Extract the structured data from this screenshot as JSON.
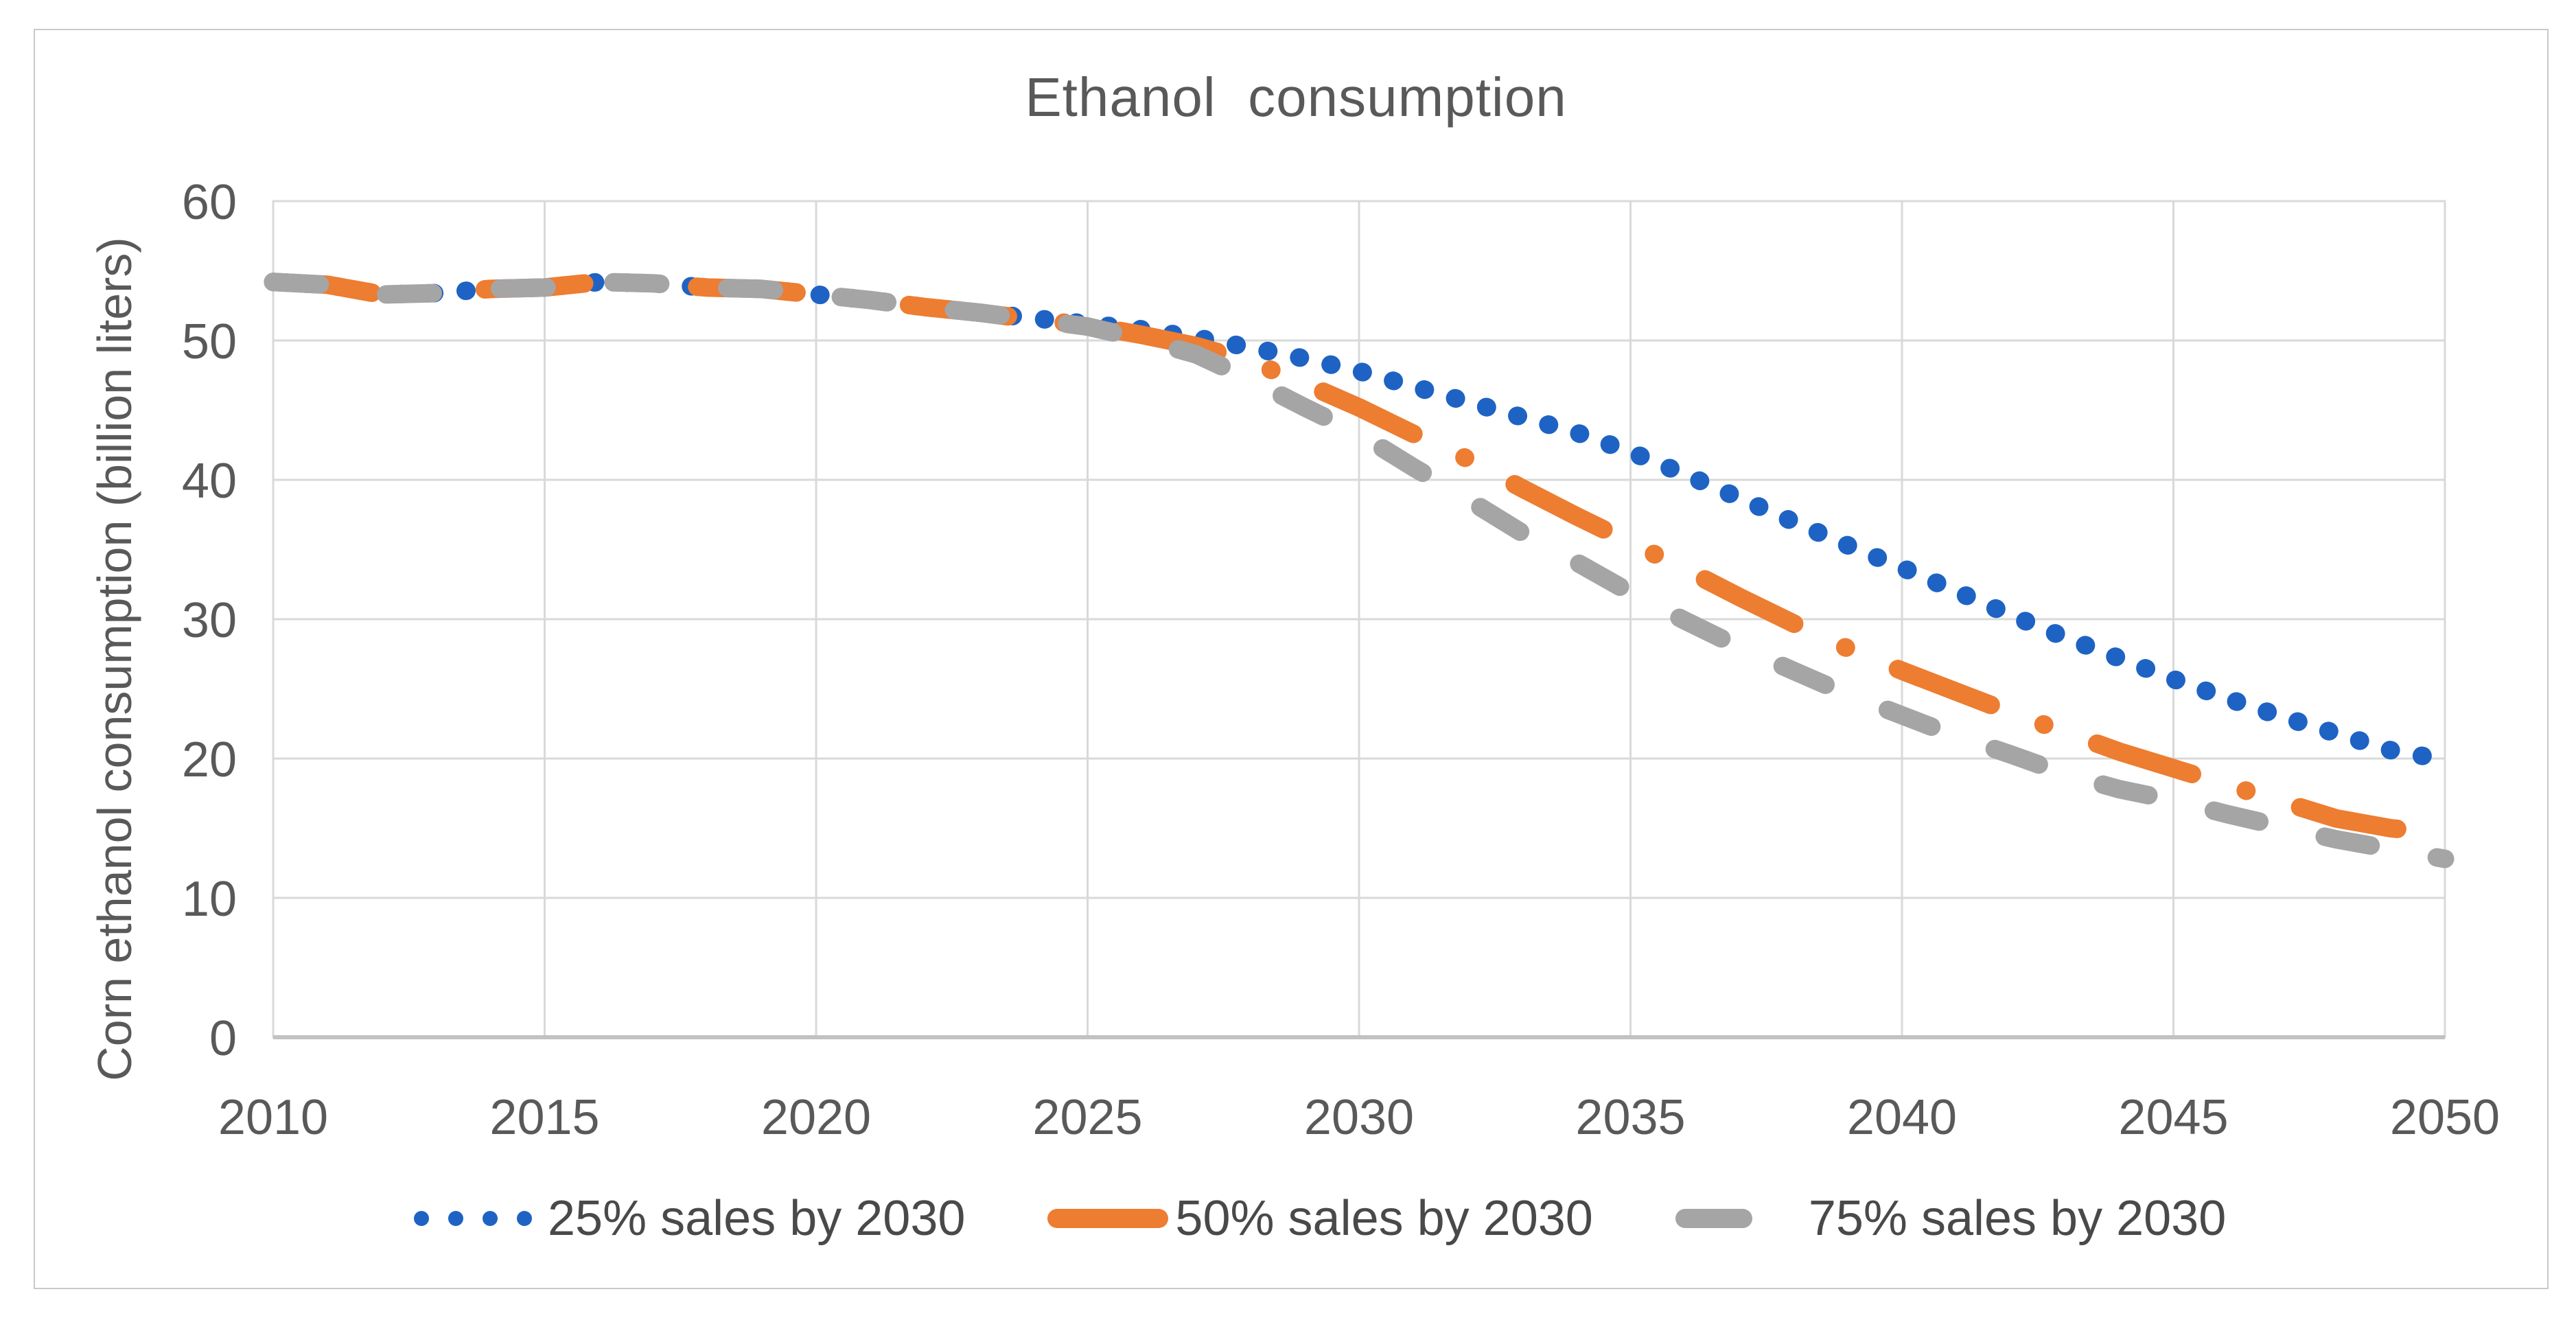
{
  "chart_data": {
    "type": "line",
    "title": "Ethanol  consumption",
    "xlabel": "",
    "ylabel": "Corn ethanol consumption (billion liters)",
    "xlim": [
      2010,
      2050
    ],
    "ylim": [
      0,
      60
    ],
    "grid": true,
    "legend_position": "bottom",
    "x_ticks": [
      "2010",
      "2015",
      "2020",
      "2025",
      "2030",
      "2035",
      "2040",
      "2045",
      "2050"
    ],
    "y_ticks": [
      "0",
      "10",
      "20",
      "30",
      "40",
      "50",
      "60"
    ],
    "x": [
      2010,
      2011,
      2012,
      2013,
      2014,
      2015,
      2016,
      2017,
      2018,
      2019,
      2020,
      2021,
      2022,
      2023,
      2024,
      2025,
      2026,
      2027,
      2028,
      2029,
      2030,
      2031,
      2032,
      2033,
      2034,
      2035,
      2036,
      2037,
      2038,
      2039,
      2040,
      2041,
      2042,
      2043,
      2044,
      2045,
      2046,
      2047,
      2048,
      2049,
      2050
    ],
    "series": [
      {
        "name": "25% sales by 2030",
        "color": "#1E63C4",
        "line_style": "dot",
        "values": [
          54.2,
          54.0,
          53.3,
          53.4,
          53.7,
          53.8,
          54.2,
          54.1,
          53.8,
          53.7,
          53.3,
          52.9,
          52.4,
          52.0,
          51.6,
          51.2,
          50.8,
          50.2,
          49.5,
          48.7,
          47.8,
          46.7,
          45.6,
          44.5,
          43.4,
          42.0,
          40.4,
          38.7,
          37.0,
          35.3,
          33.7,
          32.0,
          30.3,
          28.7,
          27.2,
          25.7,
          24.3,
          23.0,
          21.8,
          20.6,
          19.9
        ]
      },
      {
        "name": "50% sales by 2030",
        "color": "#ED7D31",
        "line_style": "long-dash-dot",
        "values": [
          54.2,
          54.0,
          53.3,
          53.4,
          53.7,
          53.8,
          54.2,
          54.1,
          53.8,
          53.7,
          53.3,
          52.9,
          52.4,
          52.0,
          51.5,
          51.1,
          50.4,
          49.6,
          48.5,
          46.9,
          45.2,
          43.3,
          41.5,
          39.4,
          37.4,
          35.5,
          33.6,
          31.6,
          29.7,
          27.9,
          26.3,
          24.8,
          23.3,
          21.9,
          20.5,
          19.3,
          18.1,
          16.9,
          15.7,
          15.0,
          14.6
        ]
      },
      {
        "name": "75% sales by 2030",
        "color": "#A5A5A5",
        "line_style": "dash",
        "values": [
          54.2,
          54.0,
          53.3,
          53.4,
          53.7,
          53.8,
          54.2,
          54.1,
          53.8,
          53.7,
          53.3,
          52.9,
          52.4,
          52.0,
          51.5,
          51.0,
          50.1,
          49.0,
          47.2,
          45.2,
          43.3,
          40.9,
          38.6,
          36.2,
          34.1,
          31.9,
          29.9,
          28.0,
          26.3,
          24.6,
          23.1,
          21.6,
          20.3,
          18.9,
          17.8,
          17.0,
          16.0,
          15.1,
          14.2,
          13.5,
          12.8
        ]
      }
    ],
    "colors": {
      "grid": "#d9d9d9",
      "plot_border": "#d9d9d9",
      "axis_line": "#c2c2c2",
      "tick_text": "#595959",
      "title_text": "#595959",
      "legend_text": "#494949",
      "outer_frame": "#c9c9c9"
    }
  }
}
